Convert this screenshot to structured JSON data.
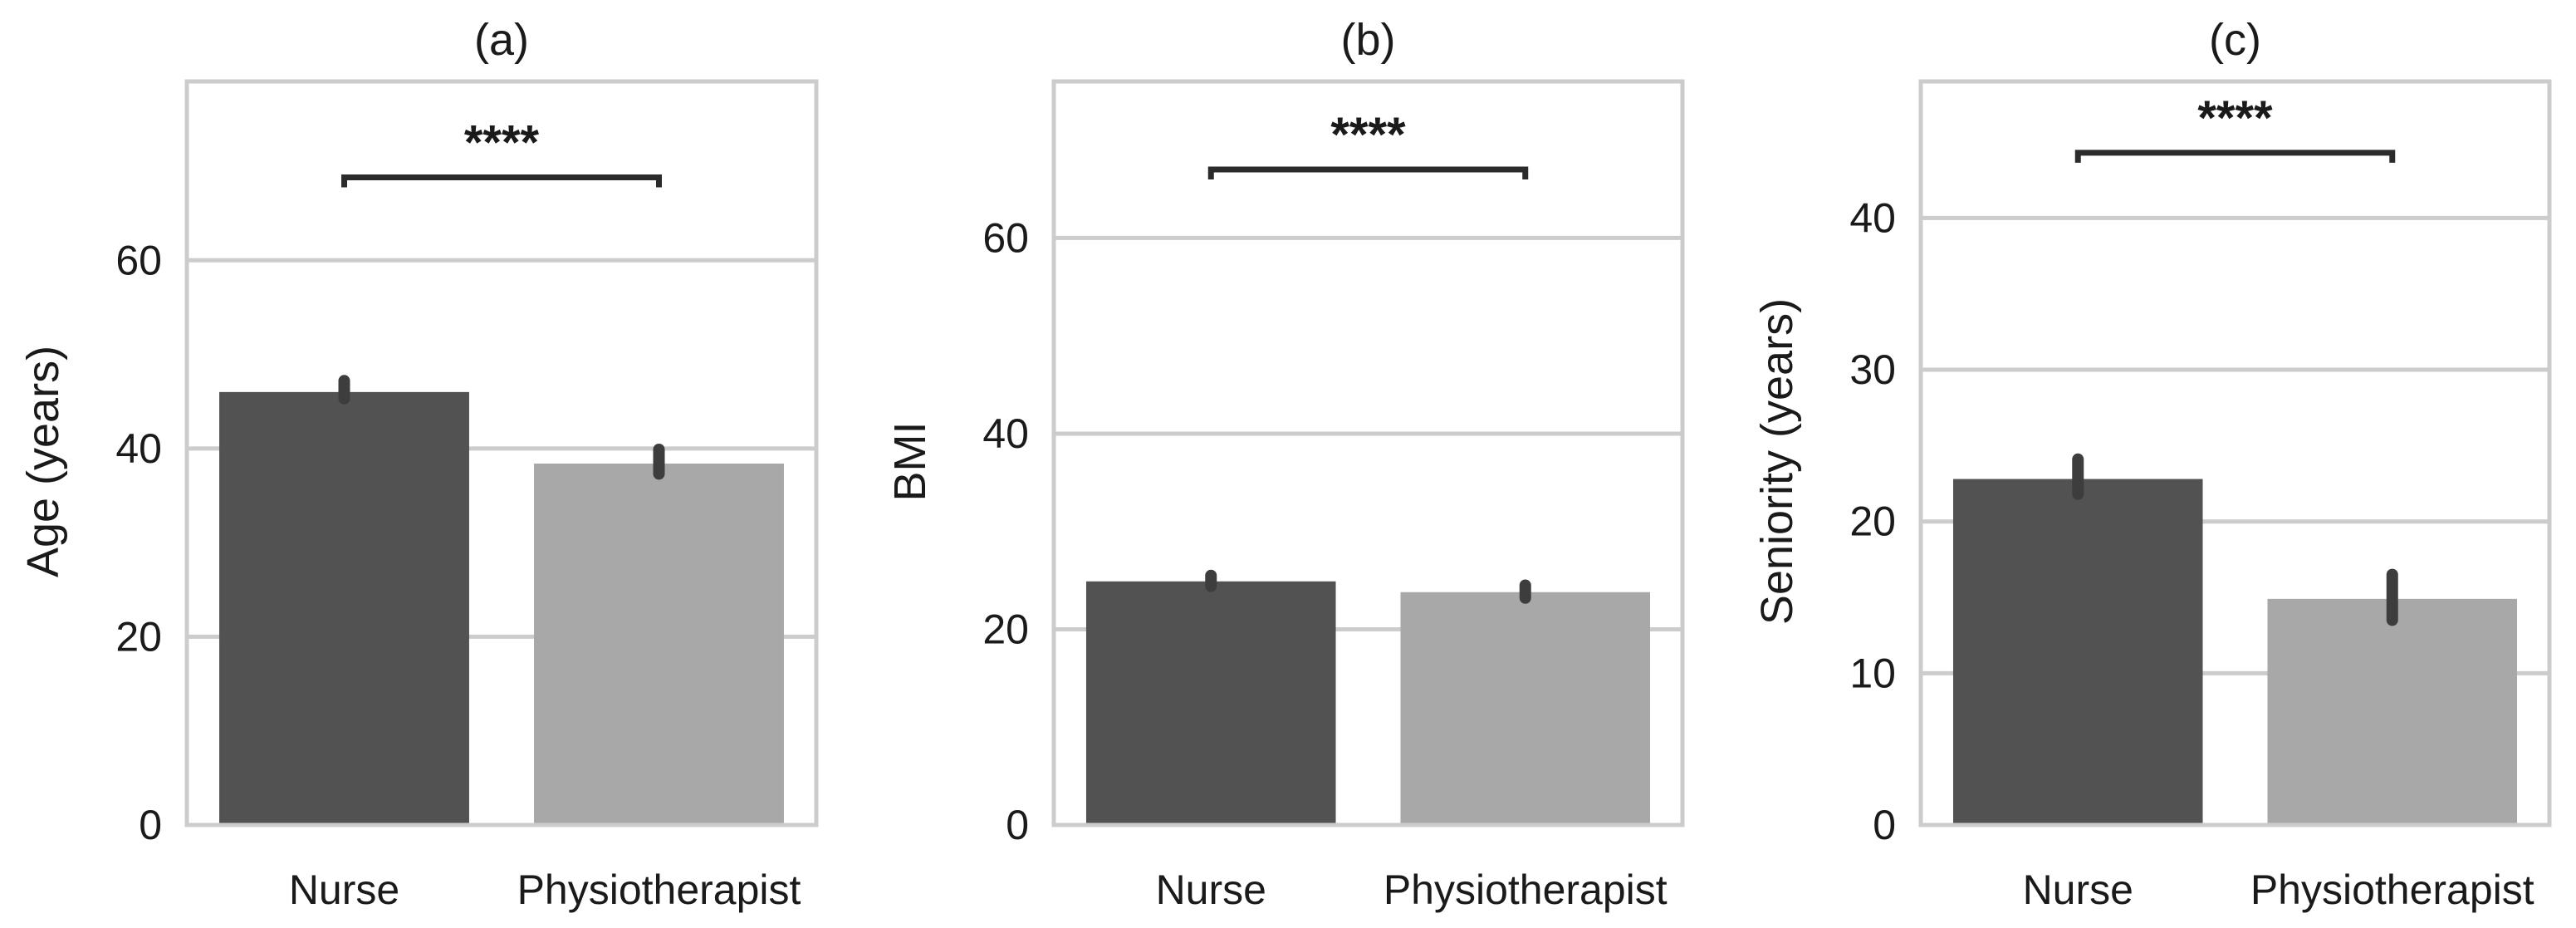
{
  "chart_data": [
    {
      "type": "bar",
      "title": "(a)",
      "ylabel": "Age (years)",
      "xlabel": "",
      "categories": [
        "Nurse",
        "Physiotherapist"
      ],
      "values": [
        46,
        38.4
      ],
      "error_low": [
        45.3,
        37.3
      ],
      "error_high": [
        47.2,
        39.9
      ],
      "ylim": [
        0,
        79
      ],
      "yticks": [
        0,
        20,
        40,
        60
      ],
      "ytick_labels": [
        "0",
        "20",
        "40",
        "60"
      ],
      "colors": [
        "#525252",
        "#a8a8a8"
      ],
      "grid": true,
      "significance": {
        "label": "****",
        "y": 68.8
      }
    },
    {
      "type": "bar",
      "title": "(b)",
      "ylabel": "BMI",
      "xlabel": "",
      "categories": [
        "Nurse",
        "Physiotherapist"
      ],
      "values": [
        24.9,
        23.8
      ],
      "error_low": [
        24.4,
        23.2
      ],
      "error_high": [
        25.5,
        24.5
      ],
      "ylim": [
        0,
        76
      ],
      "yticks": [
        0,
        20,
        40,
        60
      ],
      "ytick_labels": [
        "0",
        "20",
        "40",
        "60"
      ],
      "colors": [
        "#525252",
        "#a8a8a8"
      ],
      "grid": true,
      "significance": {
        "label": "****",
        "y": 67
      }
    },
    {
      "type": "bar",
      "title": "(c)",
      "ylabel": "Seniority (years)",
      "xlabel": "",
      "categories": [
        "Nurse",
        "Physiotherapist"
      ],
      "values": [
        22.8,
        14.9
      ],
      "error_low": [
        21.8,
        13.5
      ],
      "error_high": [
        24.1,
        16.5
      ],
      "ylim": [
        0,
        49
      ],
      "yticks": [
        0,
        10,
        20,
        30,
        40
      ],
      "ytick_labels": [
        "0",
        "10",
        "20",
        "30",
        "40"
      ],
      "colors": [
        "#525252",
        "#a8a8a8"
      ],
      "grid": true,
      "significance": {
        "label": "****",
        "y": 44.3
      }
    }
  ]
}
